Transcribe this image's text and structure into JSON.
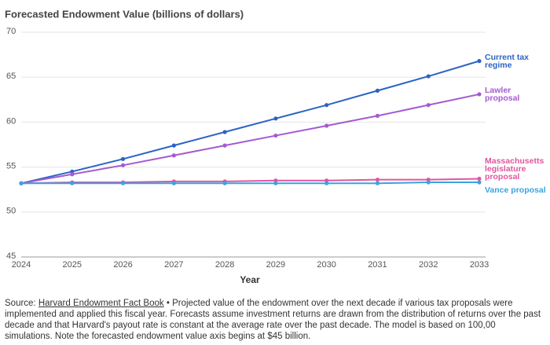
{
  "chart_data": {
    "type": "line",
    "title": "Forecasted Endowment Value (billions of dollars)",
    "x_label": "Year",
    "categories": [
      "2024",
      "2025",
      "2026",
      "2027",
      "2028",
      "2029",
      "2030",
      "2031",
      "2032",
      "2033"
    ],
    "series": [
      {
        "name": "Current tax regime",
        "color": "#2a63c6",
        "values": [
          53.2,
          54.5,
          55.9,
          57.4,
          58.9,
          60.4,
          61.9,
          63.5,
          65.1,
          66.8
        ]
      },
      {
        "name": "Lawler proposal",
        "color": "#a45ad2",
        "values": [
          53.2,
          54.2,
          55.2,
          56.3,
          57.4,
          58.5,
          59.6,
          60.7,
          61.9,
          63.1
        ]
      },
      {
        "name": "Massachusetts legislature proposal",
        "color": "#e0569f",
        "values": [
          53.2,
          53.3,
          53.3,
          53.4,
          53.4,
          53.5,
          53.5,
          53.6,
          53.6,
          53.7
        ]
      },
      {
        "name": "Vance proposal",
        "color": "#3aa3e2",
        "values": [
          53.2,
          53.2,
          53.2,
          53.2,
          53.2,
          53.2,
          53.2,
          53.2,
          53.3,
          53.3
        ]
      }
    ],
    "ylim": [
      45,
      70
    ],
    "yticks": [
      45,
      50,
      55,
      60,
      65,
      70
    ],
    "grid": true,
    "source_label": "Source:",
    "source_link": "Harvard Endowment Fact Book",
    "source_text": "• Projected value of the endowment over the next decade if various tax proposals were implemented and applied this fiscal year. Forecasts assume investment returns are drawn from the distribution of returns over the past decade and that Harvard's payout rate is constant at the average rate over the past decade. The model is based on 100,00 simulations. Note the forecasted endowment value axis begins at $45 billion."
  }
}
